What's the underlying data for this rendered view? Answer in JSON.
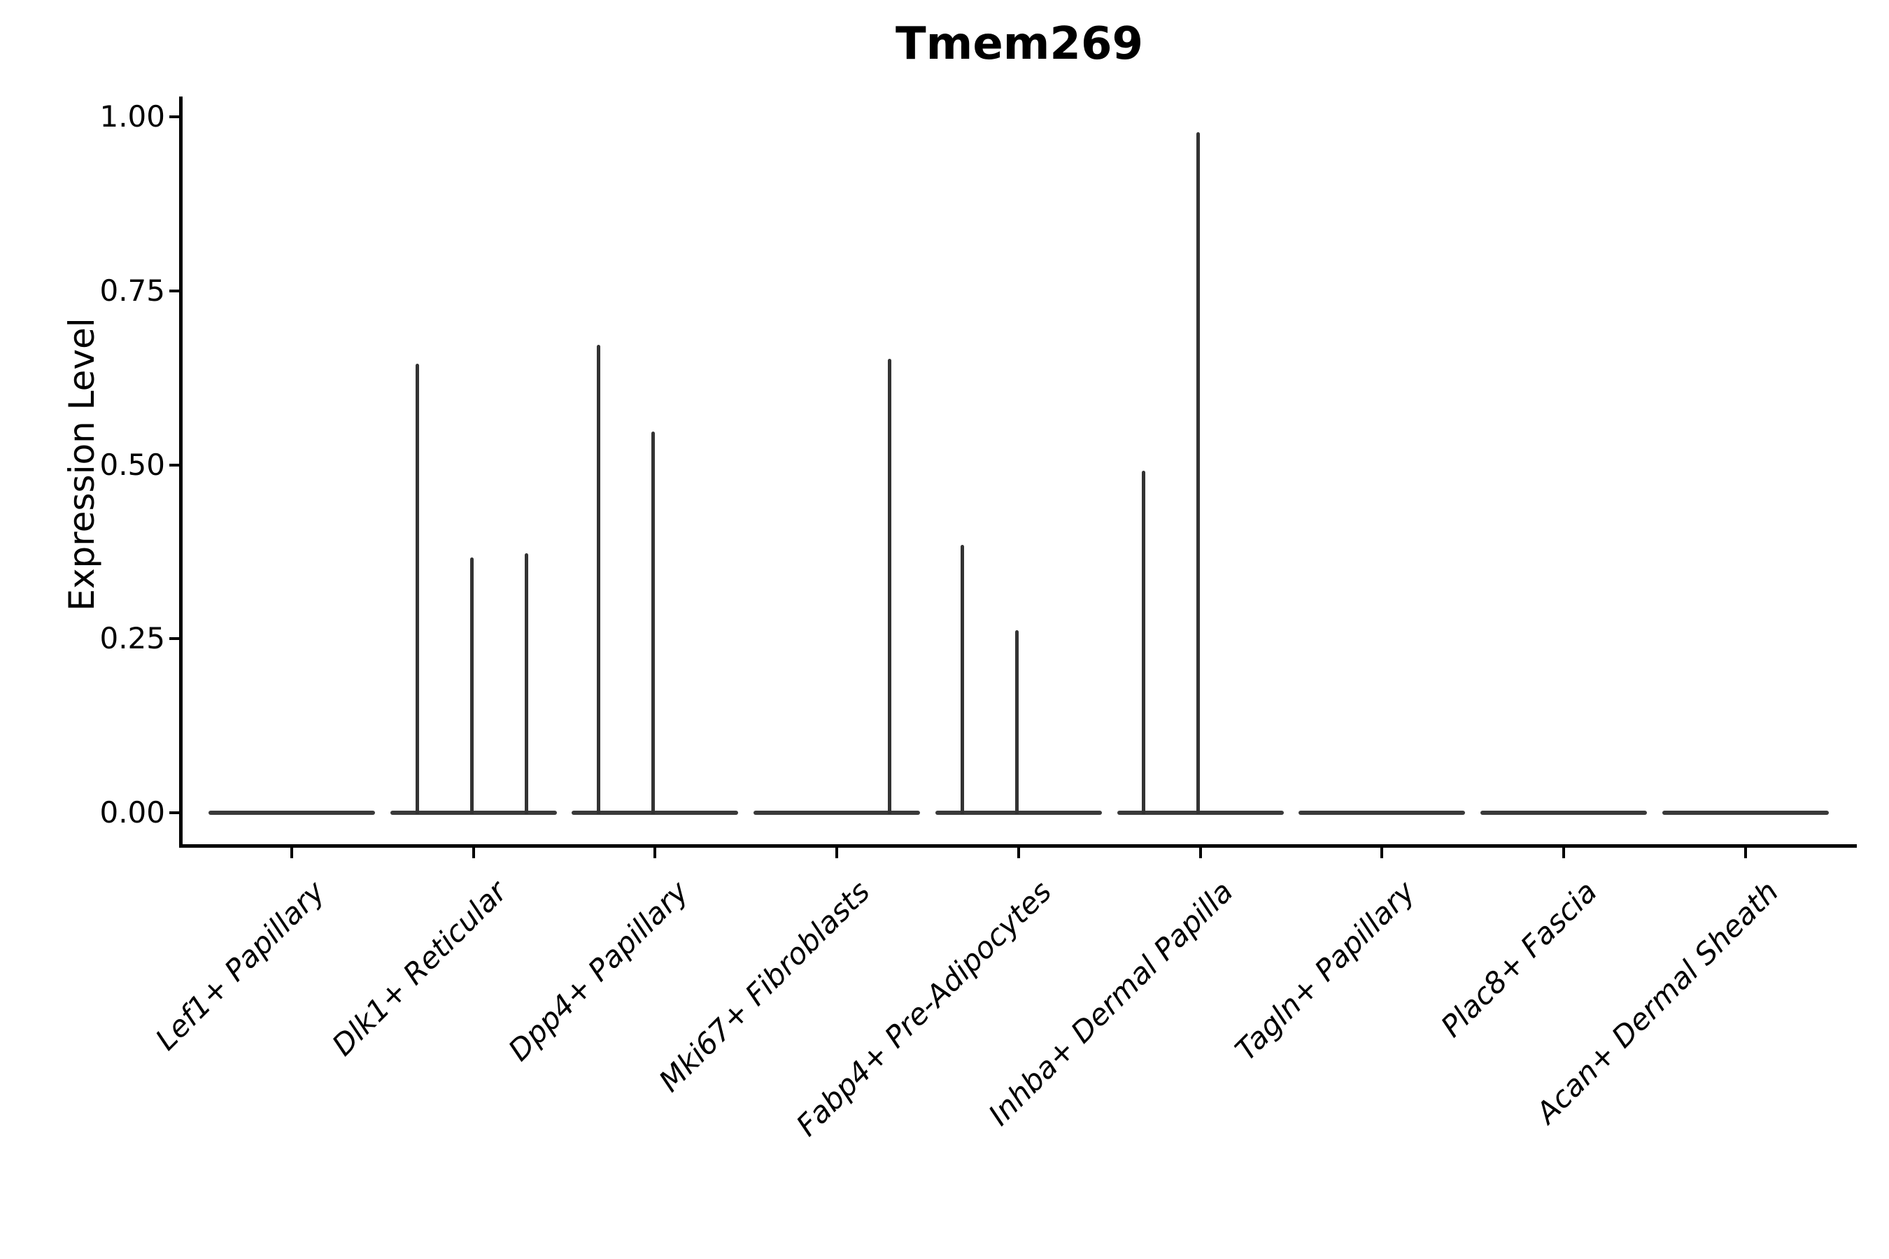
{
  "chart_data": {
    "type": "violin",
    "title": "Tmem269",
    "xlabel": "",
    "ylabel": "Expression Level",
    "ylim": [
      -0.05,
      1.03
    ],
    "yticks": [
      {
        "value": 0.0,
        "label": "0.00"
      },
      {
        "value": 0.25,
        "label": "0.25"
      },
      {
        "value": 0.5,
        "label": "0.50"
      },
      {
        "value": 0.75,
        "label": "0.75"
      },
      {
        "value": 1.0,
        "label": "1.00"
      }
    ],
    "grid": "off",
    "legend": "none",
    "line_color": "#333333",
    "axis_color": "#000000",
    "baseline_halfwidth_frac": 0.46,
    "categories": [
      "Lef1+ Papillary",
      "Dlk1+ Reticular",
      "Dpp4+ Papillary",
      "Mki67+ Fibroblasts",
      "Fabp4+ Pre-Adipocytes",
      "Inhba+ Dermal Papilla",
      "Tagln+ Papillary",
      "Plac8+ Fascia",
      "Acan+ Dermal Sheath"
    ],
    "violins": [
      {
        "category": "Lef1+ Papillary",
        "baseline_value": 0,
        "spikes": []
      },
      {
        "category": "Dlk1+ Reticular",
        "baseline_value": 0,
        "spikes": [
          {
            "offset_frac": -0.31,
            "max_value": 0.645
          },
          {
            "offset_frac": -0.01,
            "max_value": 0.367
          },
          {
            "offset_frac": 0.29,
            "max_value": 0.373
          }
        ]
      },
      {
        "category": "Dpp4+ Papillary",
        "baseline_value": 0,
        "spikes": [
          {
            "offset_frac": -0.31,
            "max_value": 0.672
          },
          {
            "offset_frac": -0.01,
            "max_value": 0.548
          }
        ]
      },
      {
        "category": "Mki67+ Fibroblasts",
        "baseline_value": 0,
        "spikes": [
          {
            "offset_frac": 0.29,
            "max_value": 0.652
          }
        ]
      },
      {
        "category": "Fabp4+ Pre-Adipocytes",
        "baseline_value": 0,
        "spikes": [
          {
            "offset_frac": -0.31,
            "max_value": 0.385
          },
          {
            "offset_frac": -0.01,
            "max_value": 0.262
          }
        ]
      },
      {
        "category": "Inhba+ Dermal Papilla",
        "baseline_value": 0,
        "spikes": [
          {
            "offset_frac": -0.31,
            "max_value": 0.491
          },
          {
            "offset_frac": -0.01,
            "max_value": 0.978
          }
        ]
      },
      {
        "category": "Tagln+ Papillary",
        "baseline_value": 0,
        "spikes": []
      },
      {
        "category": "Plac8+ Fascia",
        "baseline_value": 0,
        "spikes": []
      },
      {
        "category": "Acan+ Dermal Sheath",
        "baseline_value": 0,
        "spikes": []
      }
    ]
  }
}
